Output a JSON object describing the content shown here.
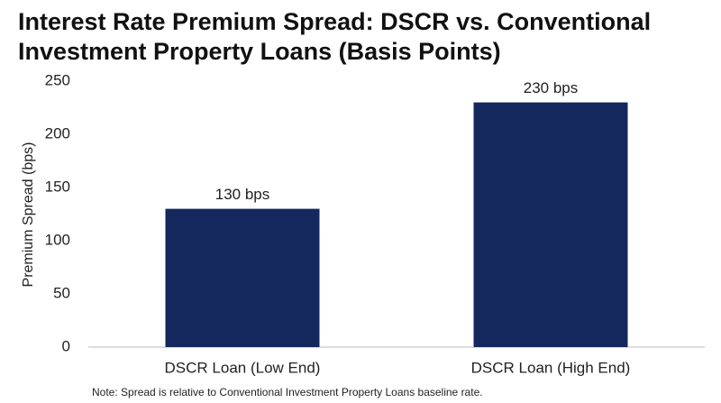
{
  "chart_data": {
    "type": "bar",
    "title": "Interest Rate Premium Spread: DSCR vs. Conventional Investment Property Loans (Basis Points)",
    "y_label": "Premium Spread (bps)",
    "categories": [
      "DSCR Loan (Low End)",
      "DSCR Loan (High End)"
    ],
    "values": [
      130,
      230
    ],
    "value_labels": [
      "130 bps",
      "230 bps"
    ],
    "color": "#14285e",
    "ylim": [
      0,
      250
    ],
    "yticks": [
      0,
      50,
      100,
      150,
      200,
      250
    ],
    "grid": false,
    "note": "Note: Spread is relative to Conventional Investment Property Loans baseline rate."
  }
}
